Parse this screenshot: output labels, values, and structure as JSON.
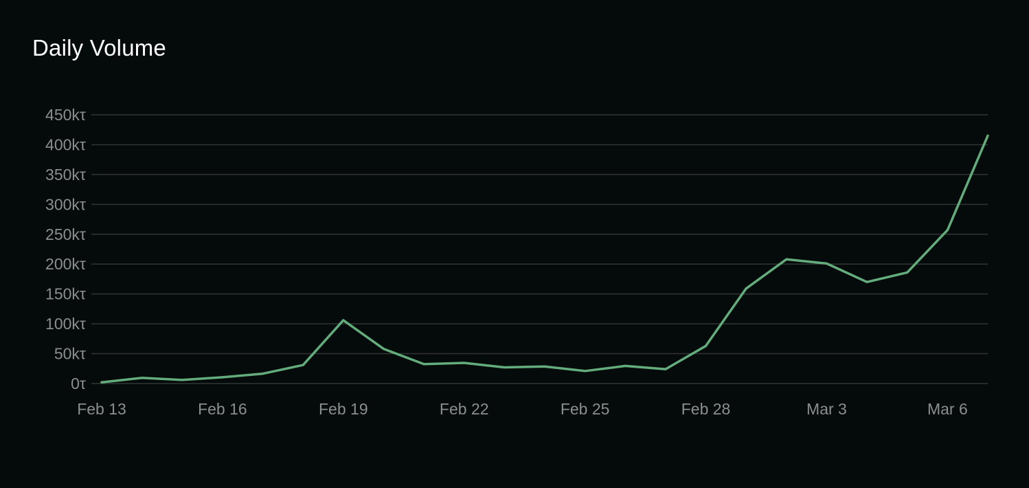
{
  "chart_data": {
    "type": "line",
    "title": "Daily Volume",
    "xlabel": "",
    "ylabel": "",
    "ylim": [
      0,
      450000
    ],
    "y_ticks": [
      0,
      50000,
      100000,
      150000,
      200000,
      250000,
      300000,
      350000,
      400000,
      450000
    ],
    "y_tick_labels": [
      "0τ",
      "50kτ",
      "100kτ",
      "150kτ",
      "200kτ",
      "250kτ",
      "300kτ",
      "350kτ",
      "400kτ",
      "450kτ"
    ],
    "x": [
      "Feb 13",
      "Feb 14",
      "Feb 15",
      "Feb 16",
      "Feb 17",
      "Feb 18",
      "Feb 19",
      "Feb 20",
      "Feb 21",
      "Feb 22",
      "Feb 23",
      "Feb 24",
      "Feb 25",
      "Feb 26",
      "Feb 27",
      "Feb 28",
      "Mar 1",
      "Mar 2",
      "Mar 3",
      "Mar 4",
      "Mar 5",
      "Mar 6",
      "Mar 7"
    ],
    "x_tick_labels": [
      "Feb 13",
      "Feb 16",
      "Feb 19",
      "Feb 22",
      "Feb 25",
      "Feb 28",
      "Mar 3",
      "Mar 6"
    ],
    "series": [
      {
        "values": [
          2000,
          9500,
          6000,
          10500,
          16500,
          31000,
          106000,
          58000,
          32500,
          34500,
          27000,
          28500,
          21000,
          29500,
          24000,
          63000,
          159000,
          208000,
          201000,
          170000,
          186000,
          257000,
          415000
        ]
      }
    ],
    "grid": "horizontal",
    "legend": "none",
    "colors": {
      "background": "#050a0b",
      "line": "#63ad7c",
      "grid": "#303435",
      "tick_text": "#8c8e90",
      "title": "#ffffff"
    }
  }
}
